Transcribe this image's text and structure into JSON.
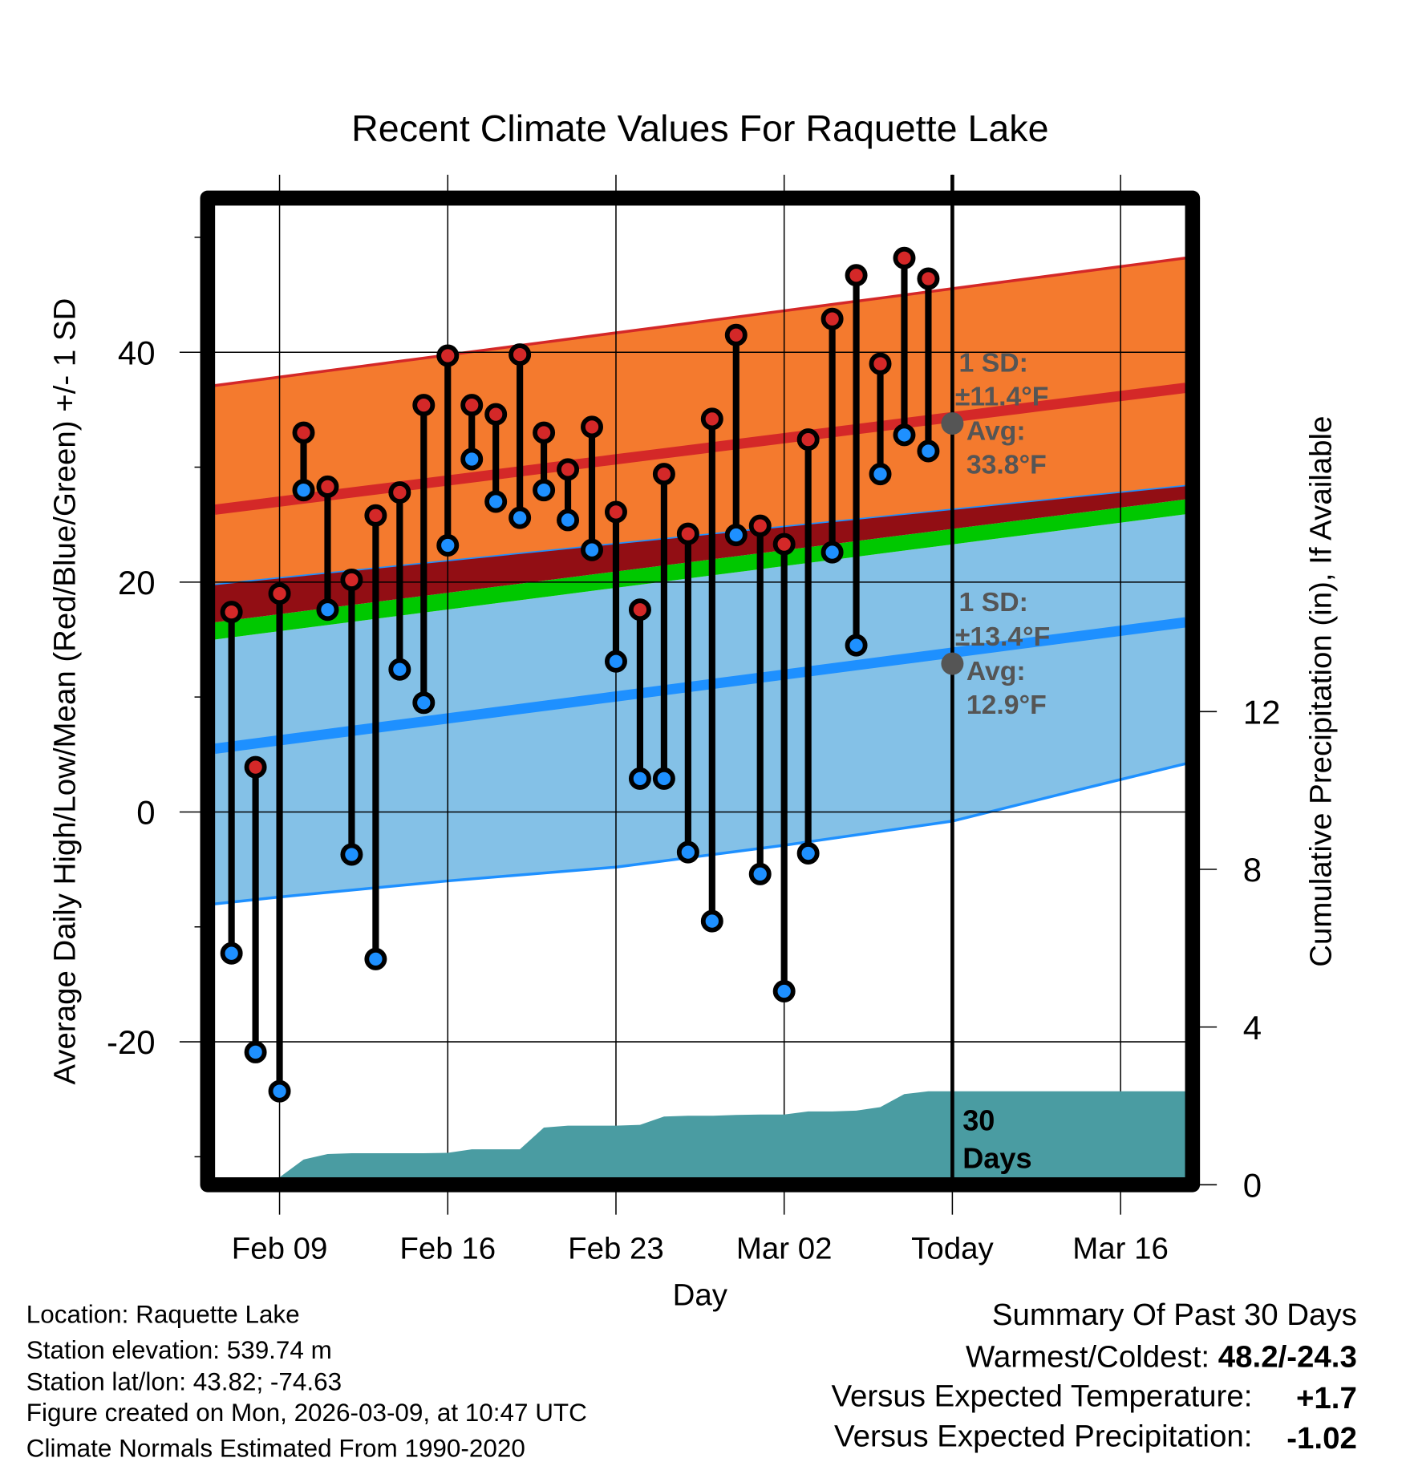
{
  "chart_data": {
    "type": "line",
    "title": "Recent Climate Values For Raquette Lake",
    "xlabel": "Day",
    "ylabel": "Average Daily High/Low/Mean (Red/Blue/Green) +/- 1 SD",
    "y2label": "Cumulative Precipitation (in), If Available",
    "ylim": [
      -32,
      52
    ],
    "y2lim": [
      0,
      26
    ],
    "x_ticks": [
      {
        "day": 0,
        "label": "Feb 09"
      },
      {
        "day": 7,
        "label": "Feb 16"
      },
      {
        "day": 14,
        "label": "Feb 23"
      },
      {
        "day": 21,
        "label": "Mar 02"
      },
      {
        "day": 28,
        "label": "Today"
      },
      {
        "day": 35,
        "label": "Mar 16"
      }
    ],
    "x_range_days": [
      -2.7,
      37.7
    ],
    "y_ticks": [
      {
        "value": 40,
        "label": "40"
      },
      {
        "value": 20,
        "label": "20"
      },
      {
        "value": 0,
        "label": "0"
      },
      {
        "value": -20,
        "label": "-20"
      }
    ],
    "y2_ticks": [
      {
        "value": 12,
        "label": "12"
      },
      {
        "value": 8,
        "label": "8"
      },
      {
        "value": 4,
        "label": "4"
      },
      {
        "value": 0,
        "label": "0"
      }
    ],
    "days": [
      -2,
      -1,
      0,
      1,
      2,
      3,
      4,
      5,
      6,
      7,
      8,
      9,
      10,
      11,
      12,
      13,
      14,
      15,
      16,
      17,
      18,
      19,
      20,
      21,
      22,
      23,
      24,
      25,
      26,
      27
    ],
    "highs": [
      17.4,
      3.9,
      19.0,
      33.0,
      28.3,
      20.2,
      25.8,
      27.8,
      35.4,
      39.7,
      35.4,
      34.6,
      39.8,
      33.0,
      29.8,
      33.5,
      26.1,
      17.6,
      29.4,
      24.2,
      34.2,
      41.5,
      24.9,
      23.3,
      32.4,
      42.9,
      46.7,
      39.0,
      48.2,
      46.4
    ],
    "lows": [
      -12.3,
      -20.9,
      -24.3,
      28.0,
      17.6,
      -3.7,
      -12.8,
      12.4,
      9.5,
      23.2,
      30.7,
      27.0,
      25.6,
      28.0,
      25.4,
      22.8,
      13.1,
      2.9,
      2.9,
      -3.5,
      -9.5,
      24.1,
      -5.4,
      -15.6,
      -3.6,
      22.6,
      14.5,
      29.4,
      32.8,
      31.4
    ],
    "normals": {
      "days": [
        -2.7,
        37.7
      ],
      "high_upper": [
        37.1,
        48.2
      ],
      "high_mean": [
        26.3,
        36.9
      ],
      "overlap_top": [
        19.8,
        28.4
      ],
      "mean_upper": [
        16.5,
        27.2
      ],
      "mean_lower": [
        15.0,
        25.9
      ],
      "low_mean": [
        5.5,
        16.5
      ],
      "low_lower_points": [
        [
          -2.7,
          -8.0
        ],
        [
          0,
          -7.4
        ],
        [
          7,
          -6.0
        ],
        [
          14,
          -4.8
        ],
        [
          21,
          -2.9
        ],
        [
          28,
          -0.8
        ],
        [
          33,
          1.8
        ],
        [
          37.7,
          4.2
        ]
      ]
    },
    "precip": {
      "days": [
        0,
        1,
        2,
        3,
        4,
        5,
        6,
        7,
        8,
        9,
        10,
        11,
        12,
        13,
        14,
        15,
        16,
        17,
        18,
        19,
        20,
        21,
        22,
        23,
        24,
        25,
        26,
        27,
        37.7
      ],
      "values": [
        0,
        0.64,
        0.78,
        0.8,
        0.8,
        0.8,
        0.8,
        0.81,
        0.9,
        0.9,
        0.9,
        1.45,
        1.5,
        1.5,
        1.5,
        1.52,
        1.73,
        1.75,
        1.75,
        1.77,
        1.78,
        1.78,
        1.86,
        1.86,
        1.88,
        1.97,
        2.3,
        2.37,
        2.37
      ]
    },
    "annotations": {
      "high_sd_label": "1 SD:",
      "high_sd_value": "±11.4°F",
      "high_avg_label": "Avg:",
      "high_avg_value": "33.8°F",
      "high_avg": 33.8,
      "low_sd_label": "1 SD:",
      "low_sd_value": "±13.4°F",
      "low_avg_label": "Avg:",
      "low_avg_value": "12.9°F",
      "low_avg": 12.9,
      "precip_label_1": "30",
      "precip_label_2": "Days"
    },
    "colors": {
      "high_band": "#F47A2E",
      "high_line": "#D42828",
      "overlap": "#920E14",
      "mean_band": "#00C800",
      "low_band": "#84C1E7",
      "low_line": "#1E90FF",
      "precip": "#4A9CA2",
      "high_dot": "#D42828",
      "low_dot": "#1E90FF"
    }
  },
  "info": {
    "location": "Location: Raquette Lake",
    "elevation": "Station elevation: 539.74 m",
    "latlon": "Station lat/lon: 43.82; -74.63",
    "created": "Figure created on Mon, 2026-03-09, at 10:47 UTC",
    "normals": "Climate Normals Estimated From 1990-2020"
  },
  "summary": {
    "title": "Summary Of Past 30 Days",
    "warm_cold_label": "Warmest/Coldest: ",
    "warm_cold_value": "48.2/-24.3",
    "temp_label": "Versus Expected Temperature:",
    "temp_value": "+1.7",
    "precip_label": "Versus Expected Precipitation:",
    "precip_value": "-1.02",
    "temp_color": "#D42828",
    "precip_color": "#A0522D"
  }
}
